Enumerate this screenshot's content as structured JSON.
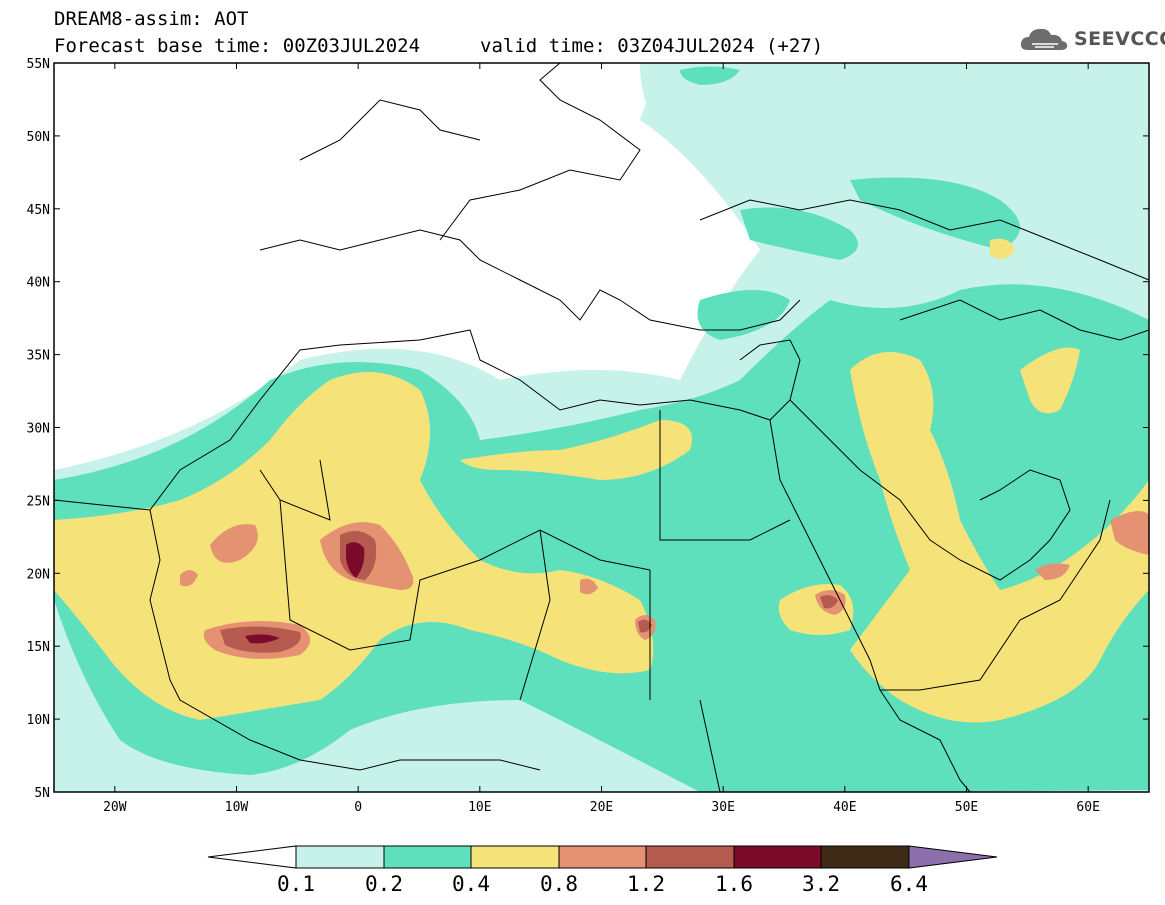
{
  "header": {
    "line1": "DREAM8-assim: AOT",
    "line2": "Forecast base time: 00Z03JUL2024",
    "valid": "valid time: 03Z04JUL2024 (+27)"
  },
  "logo": {
    "text": "SEEVCCC",
    "icon": "cloud-logo-icon"
  },
  "map": {
    "lon_range": [
      -25,
      65
    ],
    "lat_range": [
      5,
      55
    ],
    "lat_ticks": [
      "5N",
      "10N",
      "15N",
      "20N",
      "25N",
      "30N",
      "35N",
      "40N",
      "45N",
      "50N",
      "55N"
    ],
    "lon_ticks": [
      "20W",
      "10W",
      "0",
      "10E",
      "20E",
      "30E",
      "40E",
      "50E",
      "60E"
    ],
    "lat_values": [
      5,
      10,
      15,
      20,
      25,
      30,
      35,
      40,
      45,
      50,
      55
    ],
    "lon_values": [
      -20,
      -10,
      0,
      10,
      20,
      30,
      40,
      50,
      60
    ]
  },
  "colorbar": {
    "labels": [
      "0.1",
      "0.2",
      "0.4",
      "0.8",
      "1.2",
      "1.6",
      "3.2",
      "6.4"
    ],
    "colors": {
      "b1": "#c7f2ea",
      "b2": "#5ee0bd",
      "b3": "#f5e37a",
      "b4": "#e49272",
      "b5": "#b45a4e",
      "b6": "#7c0a2a",
      "b7": "#3f2a18",
      "b8": "#8e6fae",
      "low": "#ffffff"
    }
  }
}
